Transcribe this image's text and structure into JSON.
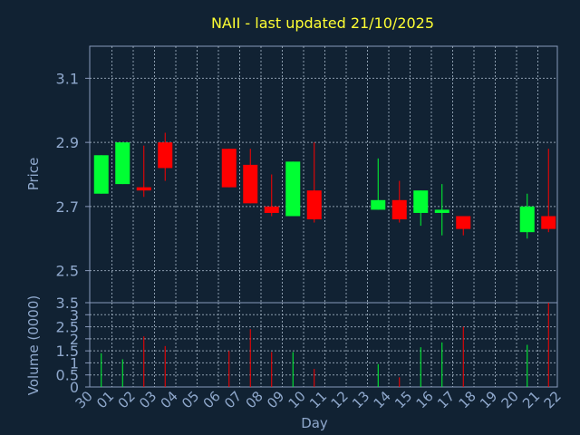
{
  "chart_data": {
    "type": "candlestick",
    "title": "NAII - last updated 21/10/2025",
    "xlabel": "Day",
    "price_axis": {
      "ylabel": "Price",
      "ylim": [
        2.4,
        3.2
      ],
      "ticks": [
        "3.1",
        "2.9",
        "2.7",
        "2.5"
      ],
      "tick_values": [
        3.1,
        2.9,
        2.7,
        2.5
      ]
    },
    "volume_axis": {
      "ylabel": "Volume (0000)",
      "ylim": [
        0,
        3.5
      ],
      "ticks": [
        "3.5",
        "3",
        "2.5",
        "2",
        "1.5",
        "1",
        "0.5",
        "0"
      ],
      "tick_values": [
        3.5,
        3,
        2.5,
        2,
        1.5,
        1,
        0.5,
        0
      ]
    },
    "days": [
      "30",
      "01",
      "02",
      "03",
      "04",
      "05",
      "06",
      "07",
      "08",
      "09",
      "10",
      "11",
      "12",
      "13",
      "14",
      "15",
      "16",
      "17",
      "18",
      "19",
      "20",
      "21",
      "22"
    ],
    "candles": [
      {
        "day": "30",
        "open": 2.74,
        "high": 2.86,
        "low": 2.74,
        "close": 2.86,
        "volume": 1.4
      },
      {
        "day": "01",
        "open": 2.77,
        "high": 2.9,
        "low": 2.77,
        "close": 2.9,
        "volume": 1.15
      },
      {
        "day": "02",
        "open": 2.76,
        "high": 2.89,
        "low": 2.73,
        "close": 2.75,
        "volume": 2.1
      },
      {
        "day": "03",
        "open": 2.9,
        "high": 2.93,
        "low": 2.78,
        "close": 2.82,
        "volume": 1.7
      },
      {
        "day": "06",
        "open": 2.88,
        "high": 2.88,
        "low": 2.76,
        "close": 2.76,
        "volume": 1.5
      },
      {
        "day": "07",
        "open": 2.83,
        "high": 2.88,
        "low": 2.71,
        "close": 2.71,
        "volume": 2.4
      },
      {
        "day": "08",
        "open": 2.7,
        "high": 2.8,
        "low": 2.67,
        "close": 2.68,
        "volume": 1.45
      },
      {
        "day": "09",
        "open": 2.67,
        "high": 2.84,
        "low": 2.67,
        "close": 2.84,
        "volume": 1.45
      },
      {
        "day": "10",
        "open": 2.75,
        "high": 2.9,
        "low": 2.65,
        "close": 2.66,
        "volume": 0.75
      },
      {
        "day": "13",
        "open": 2.69,
        "high": 2.85,
        "low": 2.69,
        "close": 2.72,
        "volume": 0.95
      },
      {
        "day": "14",
        "open": 2.72,
        "high": 2.78,
        "low": 2.65,
        "close": 2.66,
        "volume": 0.4
      },
      {
        "day": "15",
        "open": 2.68,
        "high": 2.75,
        "low": 2.64,
        "close": 2.75,
        "volume": 1.65
      },
      {
        "day": "16",
        "open": 2.68,
        "high": 2.77,
        "low": 2.61,
        "close": 2.69,
        "volume": 1.85
      },
      {
        "day": "17",
        "open": 2.67,
        "high": 2.67,
        "low": 2.61,
        "close": 2.63,
        "volume": 2.5
      },
      {
        "day": "20",
        "open": 2.62,
        "high": 2.74,
        "low": 2.6,
        "close": 2.7,
        "volume": 1.75
      },
      {
        "day": "21",
        "open": 2.67,
        "high": 2.88,
        "low": 2.62,
        "close": 2.63,
        "volume": 3.5
      }
    ],
    "grid": true,
    "colors": {
      "background": "#112233",
      "up": "#00ff33",
      "down": "#ff0000",
      "axis": "#8899bb",
      "grid": "#aabbcc",
      "title": "#ffff33",
      "text": "#8fa8cc"
    }
  }
}
